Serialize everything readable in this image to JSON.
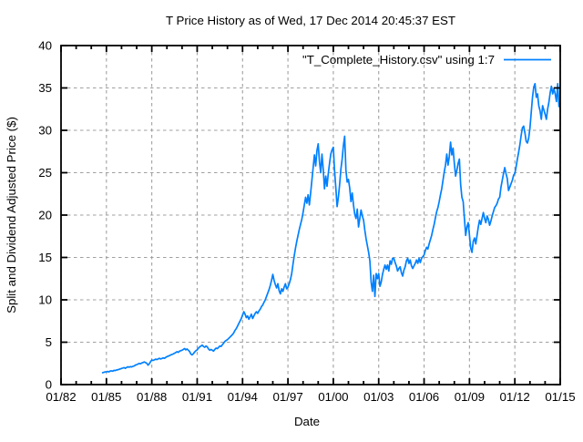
{
  "window": {
    "background_color": "#ffffff",
    "text_color": "#000000",
    "border_color": "#000000",
    "grid_color": "#a0a0a0"
  },
  "chart_data": {
    "type": "line",
    "title": "T Price History as of Wed, 17 Dec 2014 20:45:37 EST",
    "xlabel": "Date",
    "ylabel": "Split and Dividend Adjusted Price ($)",
    "legend": "\"T_Complete_History.csv\" using 1:7",
    "legend_position": "top-right-inside",
    "grid": true,
    "line_color": "#0080ff",
    "x_tick_labels": [
      "01/82",
      "01/85",
      "01/88",
      "01/91",
      "01/94",
      "01/97",
      "01/00",
      "01/03",
      "01/06",
      "01/09",
      "01/12",
      "01/15"
    ],
    "x_tick_years": [
      1982,
      1985,
      1988,
      1991,
      1994,
      1997,
      2000,
      2003,
      2006,
      2009,
      2012,
      2015
    ],
    "x_minor_tick_interval_years": 1,
    "x_range_years": [
      1982,
      2015
    ],
    "y_ticks": [
      0,
      5,
      10,
      15,
      20,
      25,
      30,
      35,
      40
    ],
    "ylim": [
      0,
      40
    ],
    "series": [
      {
        "name": "\"T_Complete_History.csv\" using 1:7",
        "start_year": 1984.75,
        "interval_months": 1,
        "values": [
          1.4,
          1.45,
          1.5,
          1.5,
          1.55,
          1.5,
          1.6,
          1.62,
          1.58,
          1.68,
          1.65,
          1.72,
          1.75,
          1.8,
          1.85,
          1.9,
          1.95,
          2.0,
          1.92,
          2.02,
          2.1,
          2.05,
          2.12,
          2.08,
          2.15,
          2.2,
          2.3,
          2.35,
          2.42,
          2.5,
          2.45,
          2.55,
          2.6,
          2.68,
          2.6,
          2.52,
          2.3,
          2.45,
          2.7,
          2.9,
          2.85,
          2.92,
          3.0,
          2.95,
          3.02,
          3.1,
          3.02,
          3.08,
          3.15,
          3.1,
          3.2,
          3.3,
          3.35,
          3.42,
          3.5,
          3.55,
          3.62,
          3.7,
          3.78,
          3.88,
          3.8,
          3.95,
          4.0,
          4.05,
          4.15,
          4.25,
          4.1,
          4.2,
          4.05,
          3.9,
          3.6,
          3.5,
          3.65,
          3.85,
          4.0,
          4.1,
          4.3,
          4.45,
          4.55,
          4.65,
          4.5,
          4.4,
          4.55,
          4.45,
          4.2,
          4.05,
          4.15,
          4.05,
          3.95,
          4.15,
          4.3,
          4.25,
          4.4,
          4.55,
          4.5,
          4.7,
          4.9,
          5.1,
          5.2,
          5.3,
          5.45,
          5.6,
          5.75,
          5.9,
          6.1,
          6.4,
          6.6,
          6.9,
          7.2,
          7.5,
          7.8,
          8.2,
          8.6,
          8.3,
          7.9,
          8.1,
          7.7,
          8.0,
          8.3,
          7.8,
          8.1,
          8.4,
          8.6,
          8.4,
          8.7,
          8.9,
          9.2,
          9.4,
          9.7,
          10.0,
          10.4,
          10.8,
          11.2,
          11.7,
          12.3,
          13.0,
          12.3,
          11.8,
          11.4,
          11.9,
          11.1,
          10.7,
          11.3,
          11.0,
          11.5,
          11.9,
          11.3,
          11.5,
          11.9,
          12.4,
          13.1,
          14.2,
          15.2,
          16.1,
          16.9,
          17.6,
          18.3,
          18.9,
          19.5,
          20.3,
          21.2,
          22.1,
          21.4,
          22.4,
          21.2,
          22.6,
          24.1,
          25.6,
          27.1,
          25.8,
          27.6,
          28.4,
          26.3,
          25.0,
          27.2,
          25.4,
          23.1,
          24.6,
          23.4,
          24.9,
          26.1,
          27.2,
          27.7,
          28.0,
          25.2,
          23.2,
          21.0,
          22.1,
          23.6,
          25.4,
          26.6,
          28.2,
          29.3,
          25.3,
          23.9,
          24.2,
          23.2,
          21.6,
          22.6,
          21.2,
          20.1,
          19.6,
          20.7,
          18.6,
          19.6,
          20.6,
          19.9,
          19.4,
          18.2,
          17.2,
          16.4,
          15.6,
          14.6,
          12.1,
          11.0,
          12.9,
          10.4,
          13.1,
          12.5,
          13.1,
          11.6,
          12.1,
          13.0,
          13.6,
          14.1,
          13.6,
          14.1,
          13.4,
          14.6,
          14.2,
          14.9,
          14.9,
          14.4,
          14.0,
          13.4,
          13.7,
          13.9,
          13.2,
          12.8,
          13.5,
          13.9,
          14.6,
          14.9,
          14.3,
          14.7,
          14.0,
          13.7,
          14.0,
          14.3,
          14.7,
          14.3,
          14.9,
          14.4,
          14.9,
          15.1,
          15.3,
          15.8,
          16.2,
          16.0,
          16.6,
          17.1,
          17.6,
          18.3,
          18.9,
          19.7,
          20.4,
          20.9,
          21.6,
          22.4,
          23.1,
          24.1,
          25.1,
          25.9,
          27.2,
          25.9,
          26.9,
          28.6,
          27.1,
          27.9,
          26.1,
          24.6,
          25.3,
          26.1,
          26.6,
          23.6,
          22.1,
          21.6,
          19.6,
          17.6,
          18.6,
          19.1,
          17.6,
          16.1,
          15.6,
          16.9,
          17.3,
          16.6,
          17.6,
          18.6,
          19.4,
          18.9,
          19.6,
          20.3,
          19.6,
          19.1,
          19.9,
          19.5,
          18.8,
          19.3,
          19.9,
          20.4,
          20.9,
          21.1,
          21.4,
          21.9,
          22.1,
          23.3,
          24.1,
          24.9,
          25.6,
          24.9,
          24.3,
          22.9,
          23.3,
          23.7,
          24.1,
          24.7,
          24.9,
          25.7,
          26.6,
          27.4,
          28.3,
          29.4,
          30.3,
          30.5,
          29.7,
          28.7,
          28.5,
          29.1,
          30.3,
          32.1,
          33.9,
          35.1,
          35.5,
          33.9,
          34.3,
          32.9,
          32.3,
          31.3,
          32.9,
          32.4,
          31.9,
          31.3,
          32.5,
          33.3,
          34.4,
          35.2,
          34.3,
          34.9,
          34.3,
          33.4,
          35.5,
          32.8
        ]
      }
    ]
  }
}
